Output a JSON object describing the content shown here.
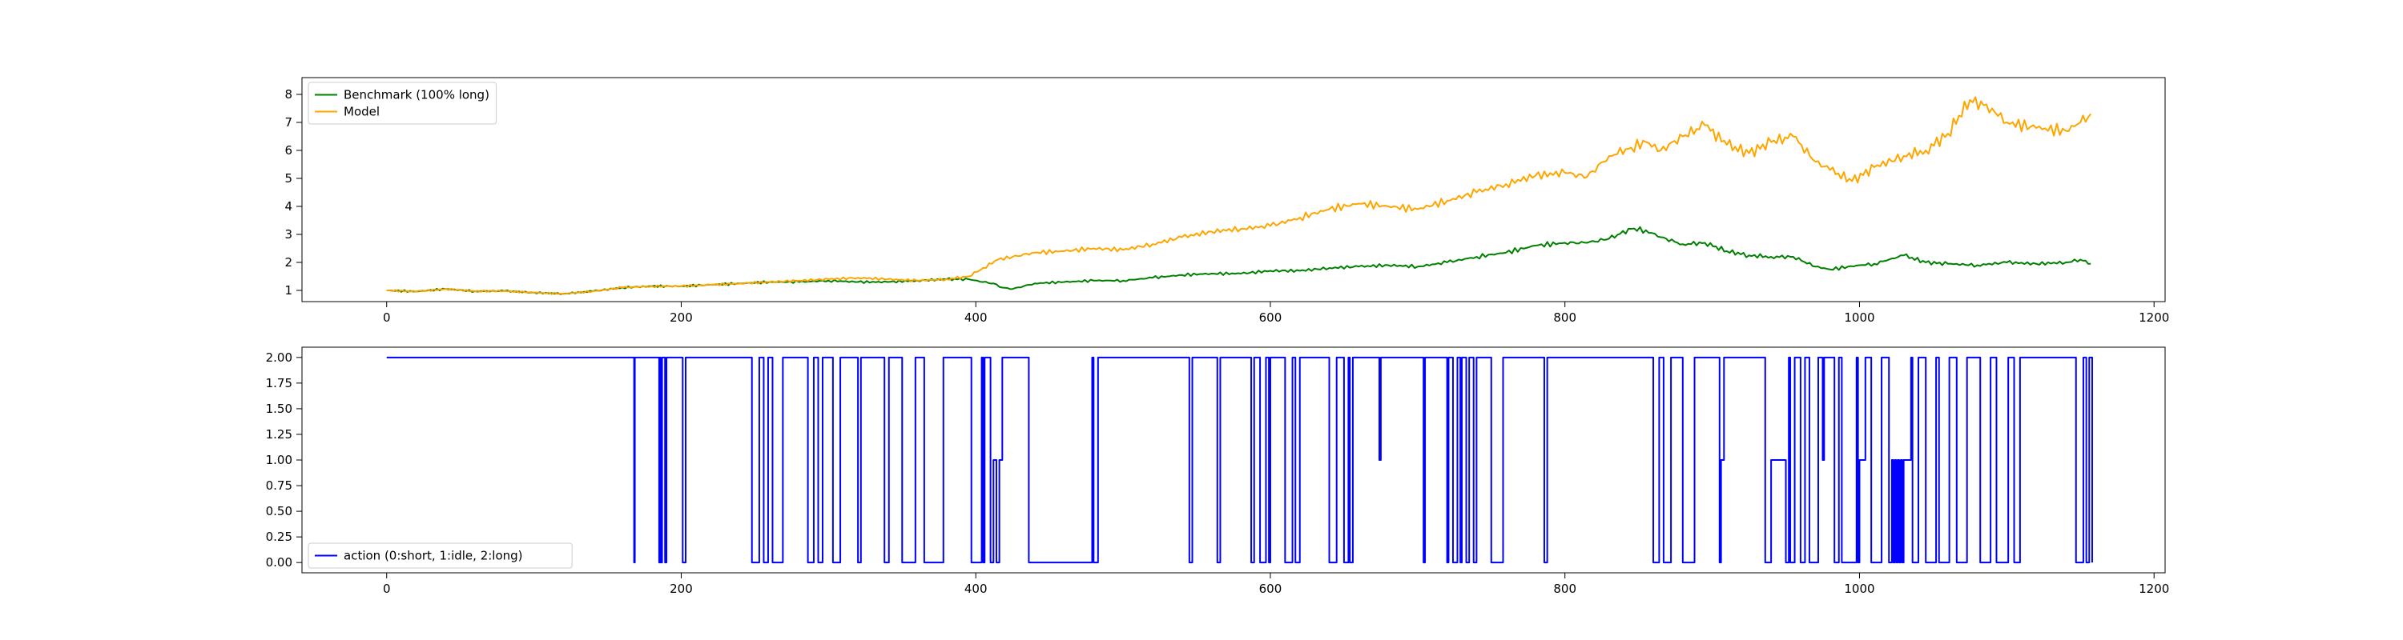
{
  "colors": {
    "benchmark": "#008000",
    "model": "#ffa500",
    "action": "#0000ff",
    "axes": "#000000",
    "background": "#ffffff"
  },
  "chart_data": [
    {
      "type": "line",
      "legend_position": "upper-left",
      "grid": false,
      "xlim": [
        -57.5,
        1207.5
      ],
      "ylim": [
        0.6,
        8.6
      ],
      "xticks": [
        0,
        200,
        400,
        600,
        800,
        1000,
        1200
      ],
      "yticks": [
        1,
        2,
        3,
        4,
        5,
        6,
        7,
        8
      ],
      "xtick_labels": [
        "0",
        "200",
        "400",
        "600",
        "800",
        "1000",
        "1200"
      ],
      "ytick_labels": [
        "1",
        "2",
        "3",
        "4",
        "5",
        "6",
        "7",
        "8"
      ],
      "series": [
        {
          "name": "Benchmark (100% long)",
          "color": "#008000",
          "x": [
            0,
            20,
            40,
            60,
            80,
            100,
            120,
            140,
            160,
            180,
            200,
            220,
            240,
            260,
            280,
            300,
            320,
            340,
            360,
            380,
            395,
            405,
            412,
            418,
            425,
            440,
            460,
            480,
            500,
            520,
            540,
            560,
            580,
            600,
            620,
            640,
            660,
            680,
            700,
            720,
            740,
            760,
            780,
            800,
            815,
            830,
            845,
            855,
            865,
            880,
            895,
            910,
            925,
            940,
            955,
            970,
            980,
            1000,
            1010,
            1030,
            1045,
            1060,
            1080,
            1100,
            1120,
            1140,
            1150,
            1157
          ],
          "y": [
            1.0,
            0.96,
            1.05,
            0.97,
            0.98,
            0.92,
            0.88,
            0.97,
            1.1,
            1.15,
            1.15,
            1.2,
            1.25,
            1.3,
            1.3,
            1.35,
            1.3,
            1.3,
            1.35,
            1.4,
            1.4,
            1.3,
            1.25,
            1.1,
            1.05,
            1.25,
            1.3,
            1.35,
            1.35,
            1.45,
            1.55,
            1.6,
            1.6,
            1.7,
            1.7,
            1.8,
            1.85,
            1.9,
            1.85,
            2.0,
            2.2,
            2.35,
            2.6,
            2.7,
            2.7,
            2.85,
            3.2,
            3.15,
            2.9,
            2.65,
            2.7,
            2.4,
            2.25,
            2.2,
            2.2,
            1.85,
            1.75,
            1.9,
            1.95,
            2.25,
            2.0,
            1.95,
            1.9,
            2.0,
            1.95,
            2.0,
            2.1,
            1.95
          ]
        },
        {
          "name": "Model",
          "color": "#ffa500",
          "x": [
            0,
            20,
            40,
            60,
            80,
            100,
            120,
            140,
            160,
            180,
            200,
            220,
            240,
            260,
            280,
            300,
            320,
            340,
            360,
            380,
            395,
            405,
            415,
            425,
            440,
            460,
            480,
            500,
            520,
            540,
            560,
            580,
            600,
            620,
            640,
            660,
            680,
            700,
            720,
            740,
            760,
            780,
            800,
            815,
            830,
            845,
            855,
            865,
            880,
            895,
            910,
            925,
            940,
            955,
            970,
            980,
            995,
            1010,
            1030,
            1045,
            1060,
            1075,
            1090,
            1100,
            1120,
            1140,
            1150,
            1157
          ],
          "y": [
            1.0,
            0.96,
            1.05,
            0.97,
            0.98,
            0.92,
            0.88,
            0.97,
            1.1,
            1.15,
            1.15,
            1.2,
            1.25,
            1.3,
            1.35,
            1.4,
            1.45,
            1.4,
            1.35,
            1.4,
            1.5,
            1.8,
            2.1,
            2.2,
            2.35,
            2.4,
            2.5,
            2.45,
            2.65,
            2.9,
            3.1,
            3.2,
            3.3,
            3.6,
            3.9,
            4.1,
            4.0,
            3.9,
            4.2,
            4.5,
            4.8,
            5.1,
            5.2,
            5.05,
            5.8,
            6.1,
            6.3,
            6.0,
            6.5,
            6.9,
            6.2,
            5.9,
            6.3,
            6.5,
            5.6,
            5.3,
            4.9,
            5.4,
            5.8,
            6.0,
            6.6,
            7.8,
            7.5,
            7.0,
            6.8,
            6.7,
            7.0,
            7.3
          ]
        }
      ]
    },
    {
      "type": "line",
      "step": true,
      "legend_position": "lower-left",
      "grid": false,
      "xlim": [
        -57.5,
        1207.5
      ],
      "ylim": [
        -0.1,
        2.1
      ],
      "xticks": [
        0,
        200,
        400,
        600,
        800,
        1000,
        1200
      ],
      "yticks": [
        0,
        0.25,
        0.5,
        0.75,
        1.0,
        1.25,
        1.5,
        1.75,
        2.0
      ],
      "xtick_labels": [
        "0",
        "200",
        "400",
        "600",
        "800",
        "1000",
        "1200"
      ],
      "ytick_labels": [
        "0.00",
        "0.25",
        "0.50",
        "0.75",
        "1.00",
        "1.25",
        "1.50",
        "1.75",
        "2.00"
      ],
      "series": [
        {
          "name": "action (0:short, 1:idle, 2:long)",
          "color": "#0000ff",
          "x": [
            0,
            168,
            168.5,
            170,
            185,
            185.5,
            186,
            187,
            189,
            190,
            193,
            201,
            203,
            248,
            253,
            256,
            259,
            262,
            269,
            278,
            286,
            290,
            293,
            296,
            303,
            308,
            320,
            322,
            338,
            341,
            350,
            359,
            362,
            365,
            378,
            394,
            397,
            404,
            405,
            406,
            410,
            412,
            414,
            416,
            418,
            430,
            436,
            479,
            480,
            483,
            485,
            545,
            547,
            564,
            566,
            587,
            589,
            593,
            597,
            599,
            600,
            602,
            610,
            615,
            617,
            620,
            632,
            640,
            645,
            650,
            653,
            654,
            656,
            673,
            674,
            675,
            703,
            704,
            705,
            720,
            721,
            724,
            727,
            729,
            730,
            733,
            735,
            738,
            740,
            750,
            758,
            770,
            786,
            788,
            860,
            864,
            867,
            872,
            880,
            888,
            905,
            906,
            908,
            911,
            936,
            940,
            950,
            952,
            953,
            956,
            960,
            963,
            966,
            972,
            975,
            976,
            977,
            983,
            986,
            988,
            998,
            999,
            1000,
            1004,
            1006,
            1008,
            1015,
            1020,
            1022,
            1023,
            1024,
            1025,
            1026,
            1027,
            1028,
            1029,
            1030,
            1035,
            1036,
            1040,
            1045,
            1052,
            1054,
            1061,
            1066,
            1073,
            1082,
            1089,
            1093,
            1101,
            1105,
            1109,
            1113,
            1147,
            1152,
            1154,
            1156,
            1158
          ],
          "y": [
            2,
            0,
            2,
            2,
            0,
            2,
            0,
            2,
            0,
            2,
            2,
            0,
            2,
            0,
            2,
            0,
            2,
            0,
            2,
            2,
            0,
            2,
            0,
            2,
            0,
            2,
            0,
            2,
            0,
            2,
            0,
            2,
            2,
            0,
            2,
            2,
            0,
            2,
            0,
            2,
            0,
            1,
            0,
            1,
            2,
            2,
            0,
            2,
            0,
            2,
            2,
            0,
            2,
            0,
            2,
            0,
            2,
            0,
            2,
            0,
            2,
            2,
            0,
            2,
            0,
            2,
            2,
            0,
            2,
            0,
            2,
            0,
            2,
            2,
            1,
            2,
            2,
            0,
            2,
            0,
            2,
            0,
            2,
            0,
            2,
            0,
            2,
            0,
            2,
            0,
            2,
            2,
            0,
            2,
            0,
            2,
            0,
            2,
            0,
            2,
            0,
            1,
            2,
            2,
            0,
            1,
            0,
            2,
            0,
            2,
            0,
            2,
            0,
            2,
            1,
            2,
            2,
            0,
            2,
            0,
            2,
            0,
            1,
            2,
            2,
            0,
            2,
            0,
            1,
            0,
            1,
            0,
            1,
            0,
            1,
            0,
            1,
            2,
            0,
            2,
            0,
            2,
            0,
            2,
            0,
            2,
            0,
            2,
            0,
            2,
            0,
            2,
            2,
            0,
            2,
            0,
            2,
            0
          ]
        }
      ]
    }
  ]
}
